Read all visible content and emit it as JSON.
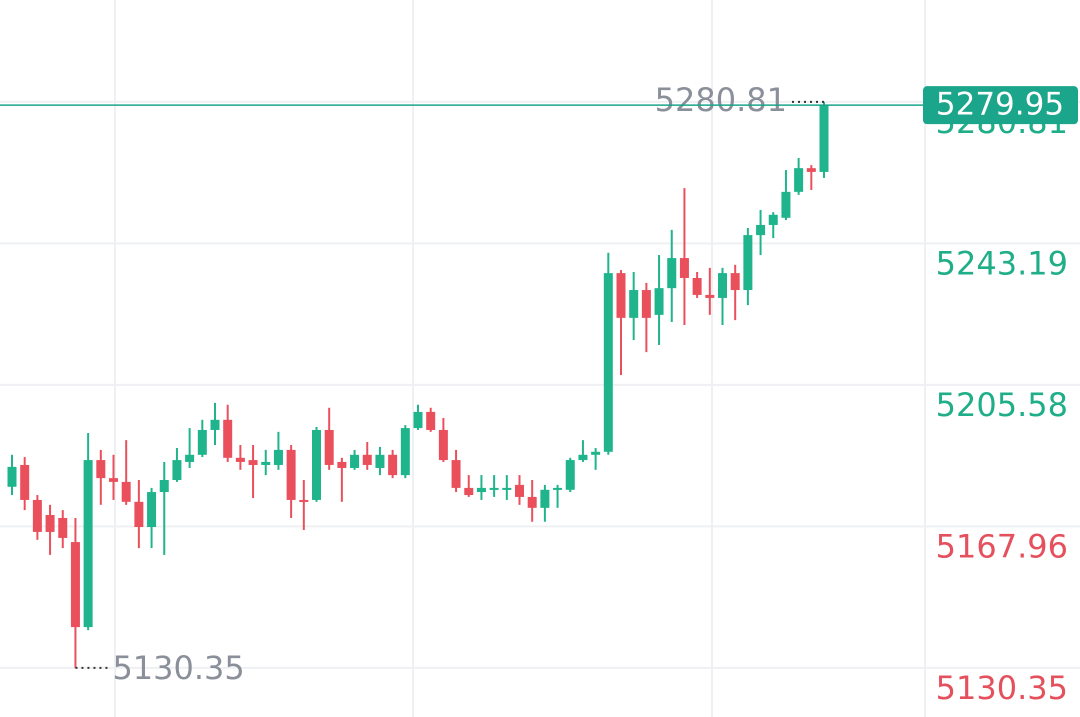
{
  "chart_data": {
    "type": "candlestick",
    "ylim": [
      5117.3,
      5307.9
    ],
    "yticks": [
      5130.35,
      5167.96,
      5205.58,
      5243.19,
      5280.81
    ],
    "ytick_colors": [
      "#e5505d",
      "#e5505d",
      "#1fae88",
      "#1fae88",
      "#1fae88"
    ],
    "grid": true,
    "up_color": "#1fb48c",
    "down_color": "#e9505c",
    "last_price_color": "#1ba58a",
    "open": [
      5178.5,
      5184.3,
      5175.0,
      5171.0,
      5170.2,
      5163.8,
      5141.2,
      5185.6,
      5180.8,
      5179.8,
      5174.5,
      5167.8,
      5177.1,
      5180.3,
      5185.1,
      5187.0,
      5193.6,
      5196.3,
      5186.2,
      5185.6,
      5184.3,
      5184.3,
      5188.3,
      5175.0,
      5175.0,
      5193.6,
      5185.1,
      5183.5,
      5187.0,
      5183.5,
      5187.0,
      5181.6,
      5194.1,
      5198.4,
      5193.6,
      5185.6,
      5178.2,
      5177.1,
      5177.7,
      5177.7,
      5179.0,
      5175.8,
      5172.9,
      5177.7,
      5177.7,
      5185.6,
      5187.0,
      5187.8,
      5235.3,
      5223.4,
      5230.8,
      5224.2,
      5231.3,
      5239.3,
      5234.0,
      5229.5,
      5228.7,
      5235.3,
      5230.8,
      5245.4,
      5248.1,
      5250.0,
      5256.9,
      5263.2,
      5262.2
    ],
    "high": [
      5187.0,
      5186.4,
      5176.3,
      5173.7,
      5172.3,
      5170.2,
      5192.8,
      5188.3,
      5187.0,
      5190.9,
      5180.3,
      5178.2,
      5185.1,
      5188.8,
      5194.1,
      5196.3,
      5200.8,
      5200.3,
      5189.6,
      5189.6,
      5188.3,
      5193.1,
      5189.6,
      5180.3,
      5194.4,
      5199.5,
      5186.2,
      5188.3,
      5190.4,
      5189.1,
      5188.3,
      5194.9,
      5200.3,
      5199.5,
      5196.8,
      5188.3,
      5181.6,
      5181.6,
      5181.6,
      5181.6,
      5181.6,
      5180.3,
      5179.0,
      5179.0,
      5186.2,
      5190.9,
      5188.8,
      5240.7,
      5236.1,
      5235.6,
      5232.7,
      5240.1,
      5246.8,
      5257.9,
      5235.6,
      5236.7,
      5236.7,
      5237.5,
      5247.3,
      5252.1,
      5251.5,
      5262.7,
      5265.9,
      5264.0,
      5280.81
    ],
    "low": [
      5176.3,
      5172.3,
      5164.4,
      5160.4,
      5162.2,
      5130.35,
      5140.4,
      5173.7,
      5175.0,
      5173.7,
      5162.2,
      5162.2,
      5160.4,
      5179.8,
      5183.5,
      5186.4,
      5189.6,
      5185.1,
      5183.0,
      5175.5,
      5181.6,
      5183.0,
      5170.2,
      5167.0,
      5174.5,
      5183.0,
      5174.5,
      5183.0,
      5183.0,
      5181.6,
      5180.8,
      5180.8,
      5193.6,
      5193.1,
      5185.1,
      5177.1,
      5175.8,
      5175.0,
      5175.8,
      5175.0,
      5173.7,
      5169.2,
      5169.2,
      5172.9,
      5177.1,
      5185.1,
      5183.0,
      5187.0,
      5208.2,
      5217.5,
      5214.3,
      5216.2,
      5222.3,
      5221.5,
      5228.7,
      5224.2,
      5221.5,
      5222.8,
      5226.8,
      5240.1,
      5244.6,
      5249.4,
      5256.1,
      5257.4,
      5260.6
    ],
    "close": [
      5183.8,
      5175.0,
      5166.5,
      5166.5,
      5164.9,
      5141.2,
      5185.6,
      5180.8,
      5179.8,
      5174.5,
      5167.8,
      5177.1,
      5180.3,
      5185.6,
      5187.0,
      5193.6,
      5196.3,
      5186.2,
      5185.1,
      5184.3,
      5185.1,
      5188.3,
      5175.0,
      5174.5,
      5193.6,
      5184.3,
      5183.5,
      5187.0,
      5184.3,
      5187.0,
      5181.6,
      5194.1,
      5198.4,
      5193.6,
      5185.6,
      5178.2,
      5176.3,
      5178.2,
      5178.2,
      5178.2,
      5175.8,
      5172.9,
      5177.7,
      5178.2,
      5185.6,
      5187.0,
      5187.8,
      5235.3,
      5223.4,
      5230.8,
      5223.4,
      5231.3,
      5239.3,
      5234.0,
      5229.5,
      5228.7,
      5235.3,
      5230.8,
      5245.4,
      5248.1,
      5250.8,
      5256.9,
      5263.2,
      5262.2,
      5279.95
    ]
  }
}
